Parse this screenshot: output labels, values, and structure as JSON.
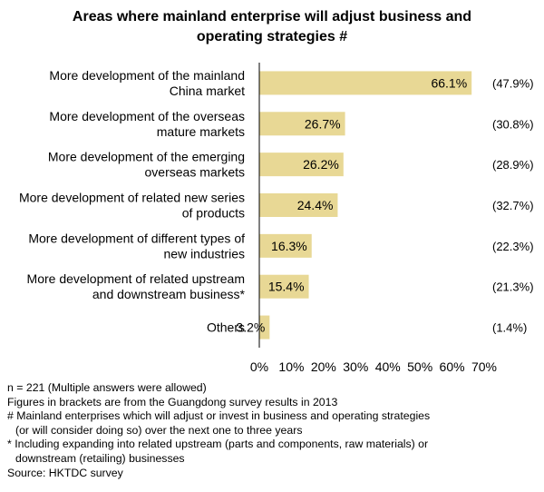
{
  "chart_data": {
    "type": "bar",
    "orientation": "horizontal",
    "title_lines": [
      "Areas where mainland enterprise will adjust business and",
      "operating strategies #"
    ],
    "categories": [
      [
        "More development of the mainland",
        "China market"
      ],
      [
        "More development of the overseas",
        "mature markets"
      ],
      [
        "More development of the emerging",
        "overseas markets"
      ],
      [
        "More development of related new series",
        "of products"
      ],
      [
        "More development of different types of",
        "new industries"
      ],
      [
        "More development of related upstream",
        "and downstream business*"
      ],
      [
        "Others"
      ]
    ],
    "values": [
      66.1,
      26.7,
      26.2,
      24.4,
      16.3,
      15.4,
      3.2
    ],
    "value_labels": [
      "66.1%",
      "26.7%",
      "26.2%",
      "24.4%",
      "16.3%",
      "15.4%",
      "3.2%"
    ],
    "comparison_labels": [
      "(47.9%)",
      "(30.8%)",
      "(28.9%)",
      "(32.7%)",
      "(22.3%)",
      "(21.3%)",
      "(1.4%)"
    ],
    "xlim": [
      0,
      70
    ],
    "xticks": [
      "0%",
      "10%",
      "20%",
      "30%",
      "40%",
      "50%",
      "60%",
      "70%"
    ],
    "bar_color": "#e8d895",
    "grid": false,
    "legend": "none"
  },
  "notes": [
    "n = 221 (Multiple answers were allowed)",
    "Figures in brackets are from the Guangdong survey results in 2013",
    "# Mainland enterprises which will adjust or invest in business and operating strategies",
    "(or will consider doing so) over the next one to three years",
    "* Including expanding into related upstream (parts and components, raw materials) or",
    "downstream (retailing) businesses",
    "Source: HKTDC survey"
  ]
}
